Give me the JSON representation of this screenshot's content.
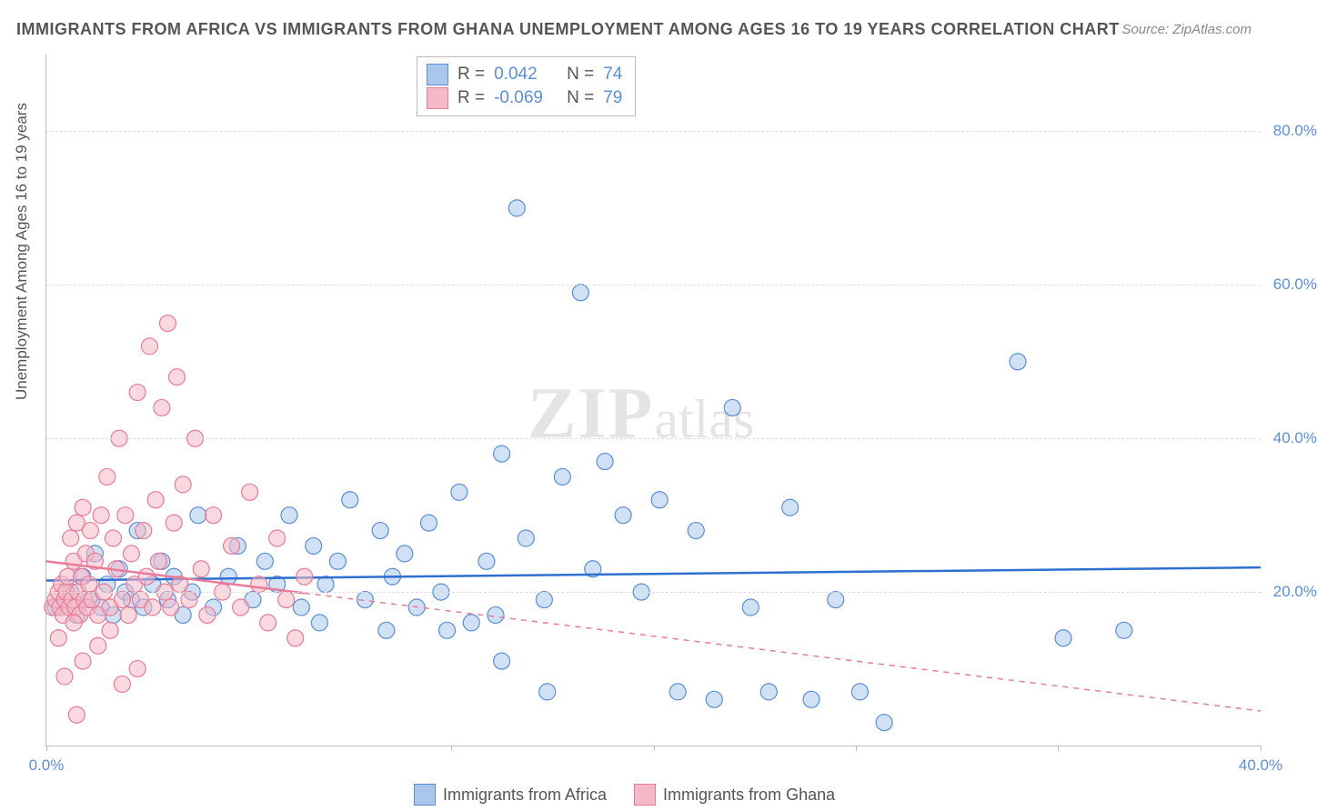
{
  "title": "IMMIGRANTS FROM AFRICA VS IMMIGRANTS FROM GHANA UNEMPLOYMENT AMONG AGES 16 TO 19 YEARS CORRELATION CHART",
  "source": "Source: ZipAtlas.com",
  "y_axis_title": "Unemployment Among Ages 16 to 19 years",
  "watermark_a": "ZIP",
  "watermark_b": "atlas",
  "chart": {
    "type": "scatter",
    "background_color": "#ffffff",
    "grid_color": "#dddddd",
    "axis_color": "#bbbbbb",
    "xlim": [
      0,
      40
    ],
    "ylim": [
      0,
      90
    ],
    "x_ticks": [
      0,
      13.33,
      20,
      26.67,
      33.33,
      40
    ],
    "x_tick_labels": {
      "0": "0.0%",
      "40": "40.0%"
    },
    "y_ticks": [
      20,
      40,
      60,
      80
    ],
    "y_tick_labels": {
      "20": "20.0%",
      "40": "40.0%",
      "60": "60.0%",
      "80": "80.0%"
    },
    "marker_radius": 9,
    "marker_opacity": 0.55,
    "series": [
      {
        "name": "Immigrants from Africa",
        "color_fill": "#a9c7ec",
        "color_stroke": "#5b8fd6",
        "R": "0.042",
        "N": "74",
        "trend": {
          "y0": 21.5,
          "y1": 23.2,
          "dash": false,
          "color": "#2f6fd0",
          "width": 2.5
        },
        "points": [
          [
            0.3,
            18
          ],
          [
            0.8,
            20
          ],
          [
            1.0,
            17
          ],
          [
            1.2,
            22
          ],
          [
            1.4,
            19
          ],
          [
            1.6,
            25
          ],
          [
            1.8,
            18
          ],
          [
            2.0,
            21
          ],
          [
            2.2,
            17
          ],
          [
            2.4,
            23
          ],
          [
            2.6,
            20
          ],
          [
            2.8,
            19
          ],
          [
            3.0,
            28
          ],
          [
            3.2,
            18
          ],
          [
            3.5,
            21
          ],
          [
            3.8,
            24
          ],
          [
            4.0,
            19
          ],
          [
            4.2,
            22
          ],
          [
            4.5,
            17
          ],
          [
            4.8,
            20
          ],
          [
            5.0,
            30
          ],
          [
            5.5,
            18
          ],
          [
            6.0,
            22
          ],
          [
            6.3,
            26
          ],
          [
            6.8,
            19
          ],
          [
            7.2,
            24
          ],
          [
            7.6,
            21
          ],
          [
            8.0,
            30
          ],
          [
            8.4,
            18
          ],
          [
            8.8,
            26
          ],
          [
            9.2,
            21
          ],
          [
            9.6,
            24
          ],
          [
            10.0,
            32
          ],
          [
            10.5,
            19
          ],
          [
            11.0,
            28
          ],
          [
            11.4,
            22
          ],
          [
            11.8,
            25
          ],
          [
            12.2,
            18
          ],
          [
            12.6,
            29
          ],
          [
            13.0,
            20
          ],
          [
            13.6,
            33
          ],
          [
            14.0,
            16
          ],
          [
            14.5,
            24
          ],
          [
            15.0,
            38
          ],
          [
            15.5,
            70
          ],
          [
            15.8,
            27
          ],
          [
            16.4,
            19
          ],
          [
            17.0,
            35
          ],
          [
            17.6,
            59
          ],
          [
            18.0,
            23
          ],
          [
            18.4,
            37
          ],
          [
            19.0,
            30
          ],
          [
            19.6,
            20
          ],
          [
            20.2,
            32
          ],
          [
            20.8,
            7
          ],
          [
            21.4,
            28
          ],
          [
            22.0,
            6
          ],
          [
            22.6,
            44
          ],
          [
            23.2,
            18
          ],
          [
            23.8,
            7
          ],
          [
            24.5,
            31
          ],
          [
            25.2,
            6
          ],
          [
            26.0,
            19
          ],
          [
            26.8,
            7
          ],
          [
            27.6,
            3
          ],
          [
            32.0,
            50
          ],
          [
            33.5,
            14
          ],
          [
            35.5,
            15
          ],
          [
            15.0,
            11
          ],
          [
            16.5,
            7
          ],
          [
            13.2,
            15
          ],
          [
            14.8,
            17
          ],
          [
            11.2,
            15
          ],
          [
            9.0,
            16
          ]
        ]
      },
      {
        "name": "Immigrants from Ghana",
        "color_fill": "#f5b8c6",
        "color_stroke": "#e87b98",
        "R": "-0.069",
        "N": "79",
        "trend": {
          "y0": 24.0,
          "y1": 4.5,
          "dash": true,
          "color": "#e87b98",
          "width": 1.5
        },
        "trend_solid_until": 8.5,
        "points": [
          [
            0.2,
            18
          ],
          [
            0.3,
            19
          ],
          [
            0.4,
            20
          ],
          [
            0.45,
            18
          ],
          [
            0.5,
            21
          ],
          [
            0.55,
            17
          ],
          [
            0.6,
            19
          ],
          [
            0.65,
            20
          ],
          [
            0.7,
            22
          ],
          [
            0.75,
            18
          ],
          [
            0.8,
            27
          ],
          [
            0.85,
            19
          ],
          [
            0.9,
            24
          ],
          [
            0.95,
            18
          ],
          [
            1.0,
            29
          ],
          [
            1.05,
            20
          ],
          [
            1.1,
            17
          ],
          [
            1.15,
            22
          ],
          [
            1.2,
            31
          ],
          [
            1.25,
            19
          ],
          [
            1.3,
            25
          ],
          [
            1.35,
            18
          ],
          [
            1.4,
            21
          ],
          [
            1.45,
            28
          ],
          [
            1.5,
            19
          ],
          [
            1.6,
            24
          ],
          [
            1.7,
            17
          ],
          [
            1.8,
            30
          ],
          [
            1.9,
            20
          ],
          [
            2.0,
            35
          ],
          [
            2.1,
            18
          ],
          [
            2.2,
            27
          ],
          [
            2.3,
            23
          ],
          [
            2.4,
            40
          ],
          [
            2.5,
            19
          ],
          [
            2.6,
            30
          ],
          [
            2.7,
            17
          ],
          [
            2.8,
            25
          ],
          [
            2.9,
            21
          ],
          [
            3.0,
            46
          ],
          [
            3.1,
            19
          ],
          [
            3.2,
            28
          ],
          [
            3.3,
            22
          ],
          [
            3.4,
            52
          ],
          [
            3.5,
            18
          ],
          [
            3.6,
            32
          ],
          [
            3.7,
            24
          ],
          [
            3.8,
            44
          ],
          [
            3.9,
            20
          ],
          [
            4.0,
            55
          ],
          [
            4.1,
            18
          ],
          [
            4.2,
            29
          ],
          [
            4.3,
            48
          ],
          [
            4.4,
            21
          ],
          [
            4.5,
            34
          ],
          [
            4.7,
            19
          ],
          [
            4.9,
            40
          ],
          [
            5.1,
            23
          ],
          [
            5.3,
            17
          ],
          [
            5.5,
            30
          ],
          [
            5.8,
            20
          ],
          [
            6.1,
            26
          ],
          [
            6.4,
            18
          ],
          [
            6.7,
            33
          ],
          [
            7.0,
            21
          ],
          [
            7.3,
            16
          ],
          [
            7.6,
            27
          ],
          [
            7.9,
            19
          ],
          [
            8.2,
            14
          ],
          [
            8.5,
            22
          ],
          [
            0.6,
            9
          ],
          [
            1.2,
            11
          ],
          [
            1.0,
            4
          ],
          [
            2.5,
            8
          ],
          [
            3.0,
            10
          ],
          [
            0.4,
            14
          ],
          [
            0.9,
            16
          ],
          [
            1.7,
            13
          ],
          [
            2.1,
            15
          ]
        ]
      }
    ]
  },
  "legend_top_labels": {
    "R": "R =",
    "N": "N ="
  },
  "legend_bottom": [
    "Immigrants from Africa",
    "Immigrants from Ghana"
  ]
}
